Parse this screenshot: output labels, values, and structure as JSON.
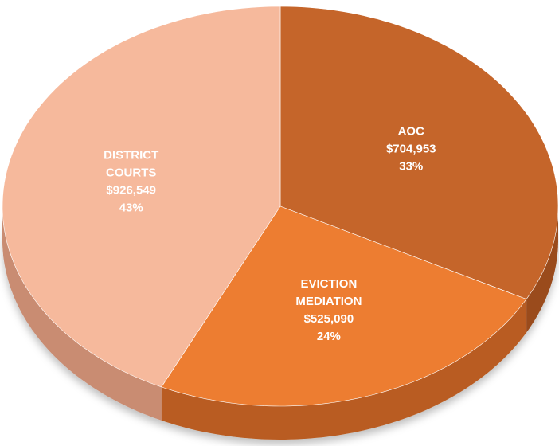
{
  "chart_data": {
    "type": "pie",
    "categories": [
      "AOC",
      "EVICTION MEDIATION",
      "DISTRICT COURTS"
    ],
    "values": [
      704953,
      525090,
      926549
    ],
    "value_labels": [
      "$704,953",
      "$525,090",
      "$926,549"
    ],
    "percents": [
      33,
      24,
      43
    ],
    "percent_labels": [
      "33%",
      "24%",
      "43%"
    ],
    "colors": [
      "#c5652a",
      "#ed7d31",
      "#f6b99c"
    ],
    "side_colors": [
      "#9a4b1d",
      "#b95c20",
      "#c98c72"
    ]
  }
}
